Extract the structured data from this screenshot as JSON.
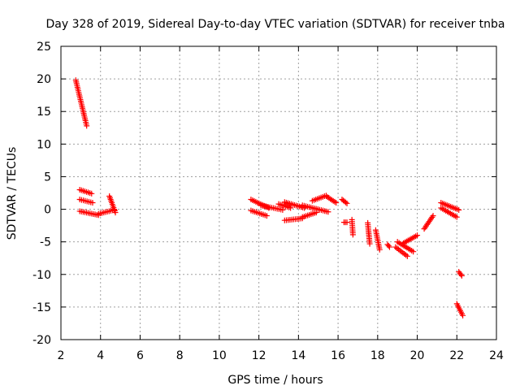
{
  "chart_data": {
    "type": "scatter",
    "title": "Day 328 of 2019, Sidereal Day-to-day VTEC variation (SDTVAR) for receiver tnba",
    "xlabel": "GPS time / hours",
    "ylabel": "SDTVAR / TECUs",
    "xlim": [
      2,
      24
    ],
    "ylim": [
      -20,
      25
    ],
    "xticks": [
      2,
      4,
      6,
      8,
      10,
      12,
      14,
      16,
      18,
      20,
      22,
      24
    ],
    "yticks": [
      -20,
      -15,
      -10,
      -5,
      0,
      5,
      10,
      15,
      20,
      25
    ],
    "grid": true,
    "marker": "plus",
    "color": "#ff0000",
    "segments": [
      {
        "x": [
          2.75,
          3.3
        ],
        "y": [
          19.8,
          12.8
        ]
      },
      {
        "x": [
          2.95,
          3.55
        ],
        "y": [
          3.0,
          2.4
        ]
      },
      {
        "x": [
          2.95,
          3.6
        ],
        "y": [
          1.5,
          1.0
        ]
      },
      {
        "x": [
          2.95,
          3.9
        ],
        "y": [
          -0.3,
          -0.9
        ]
      },
      {
        "x": [
          3.9,
          4.7
        ],
        "y": [
          -0.7,
          -0.1
        ]
      },
      {
        "x": [
          4.45,
          4.75
        ],
        "y": [
          2.0,
          -0.5
        ]
      },
      {
        "x": [
          11.6,
          12.5
        ],
        "y": [
          1.5,
          0.2
        ]
      },
      {
        "x": [
          11.6,
          12.4
        ],
        "y": [
          -0.2,
          -1.0
        ]
      },
      {
        "x": [
          12.1,
          13.2
        ],
        "y": [
          0.6,
          -0.1
        ]
      },
      {
        "x": [
          13.0,
          13.6
        ],
        "y": [
          0.8,
          0.2
        ]
      },
      {
        "x": [
          13.3,
          14.2
        ],
        "y": [
          -1.7,
          -1.4
        ]
      },
      {
        "x": [
          13.3,
          14.3
        ],
        "y": [
          1.1,
          0.2
        ]
      },
      {
        "x": [
          14.2,
          14.9
        ],
        "y": [
          -1.2,
          -0.5
        ]
      },
      {
        "x": [
          14.2,
          15.5
        ],
        "y": [
          0.6,
          -0.4
        ]
      },
      {
        "x": [
          14.7,
          15.4
        ],
        "y": [
          1.3,
          2.1
        ]
      },
      {
        "x": [
          15.4,
          15.9
        ],
        "y": [
          2.0,
          1.0
        ]
      },
      {
        "x": [
          16.2,
          16.45
        ],
        "y": [
          1.5,
          0.9
        ]
      },
      {
        "x": [
          16.3,
          16.45
        ],
        "y": [
          -2.0,
          -2.0
        ]
      },
      {
        "x": [
          16.7,
          16.75
        ],
        "y": [
          -1.6,
          -3.9
        ]
      },
      {
        "x": [
          17.5,
          17.6
        ],
        "y": [
          -2.1,
          -5.3
        ]
      },
      {
        "x": [
          17.9,
          18.1
        ],
        "y": [
          -3.2,
          -6.2
        ]
      },
      {
        "x": [
          18.5,
          18.6
        ],
        "y": [
          -5.4,
          -5.8
        ]
      },
      {
        "x": [
          18.9,
          19.5
        ],
        "y": [
          -5.8,
          -7.2
        ]
      },
      {
        "x": [
          19.0,
          19.8
        ],
        "y": [
          -5.0,
          -6.5
        ]
      },
      {
        "x": [
          19.3,
          20.0
        ],
        "y": [
          -5.2,
          -4.0
        ]
      },
      {
        "x": [
          20.35,
          20.8
        ],
        "y": [
          -3.0,
          -1.0
        ]
      },
      {
        "x": [
          21.2,
          22.1
        ],
        "y": [
          1.0,
          -0.1
        ]
      },
      {
        "x": [
          21.2,
          22.0
        ],
        "y": [
          0.2,
          -1.2
        ]
      },
      {
        "x": [
          22.1,
          22.25
        ],
        "y": [
          -9.6,
          -10.2
        ]
      },
      {
        "x": [
          22.0,
          22.3
        ],
        "y": [
          -14.5,
          -16.3
        ]
      }
    ]
  }
}
